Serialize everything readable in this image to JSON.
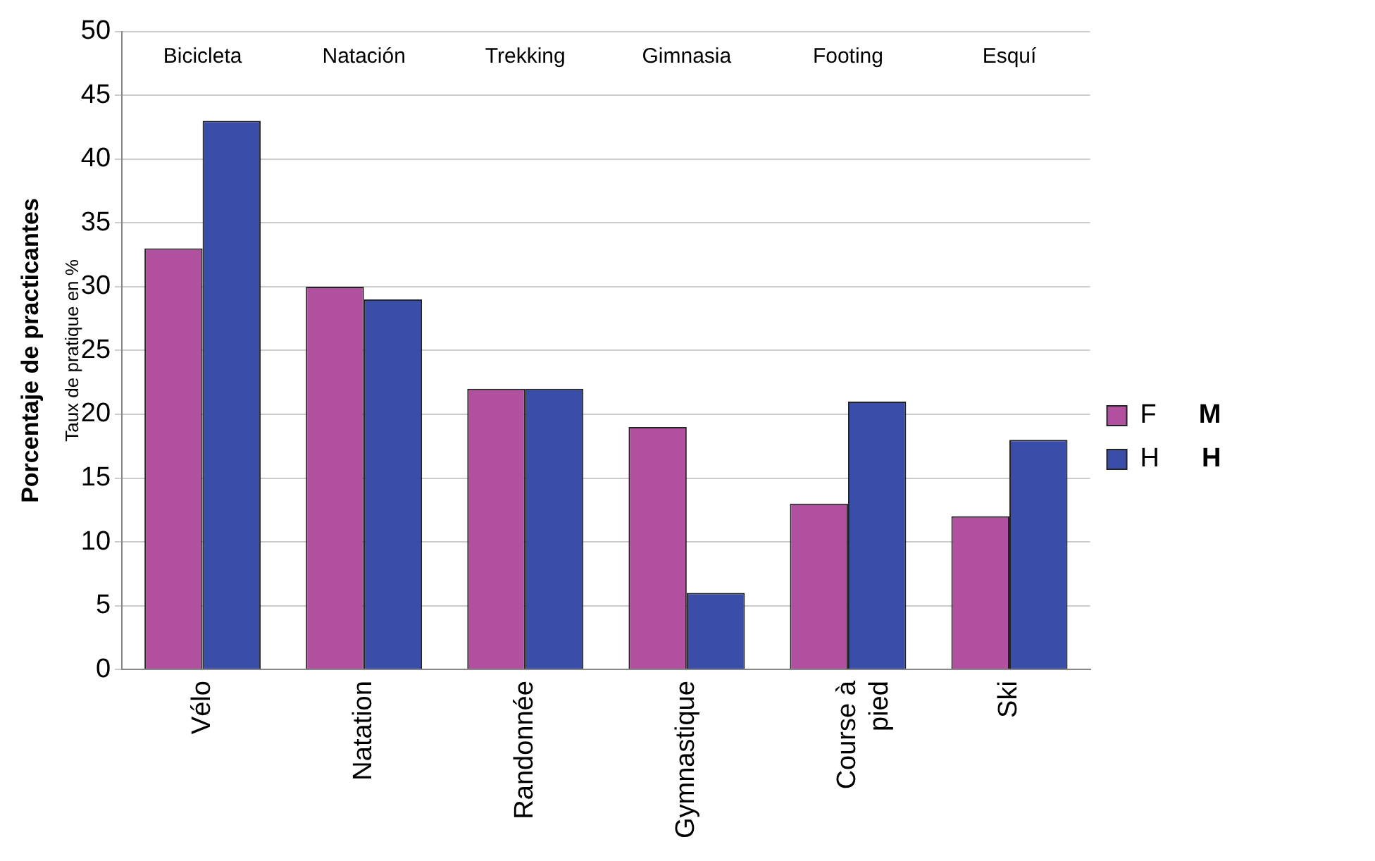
{
  "chart_data": {
    "type": "bar",
    "ylabel": "Porcentaje de practicantes",
    "categories": [
      "Vélo",
      "Natation",
      "Randonnée",
      "Gymnastique",
      "Course à pied",
      "Ski"
    ],
    "series": [
      {
        "name": "F",
        "color": "#b0509e",
        "values": [
          33,
          30,
          22,
          19,
          13,
          12
        ]
      },
      {
        "name": "H",
        "color": "#3a4da8",
        "values": [
          43,
          29,
          22,
          6,
          21,
          18
        ]
      }
    ],
    "ylim": [
      0,
      50
    ],
    "yticks": [
      0,
      5,
      10,
      15,
      20,
      25,
      30,
      35,
      40,
      45,
      50
    ],
    "grid": "y",
    "legend": "right",
    "annotations": [
      "Taux de pratique en %",
      "M",
      "H",
      "Bicicleta",
      "Natación",
      "Trekking",
      "Gimnasia",
      "Footing",
      "Esquí"
    ]
  }
}
